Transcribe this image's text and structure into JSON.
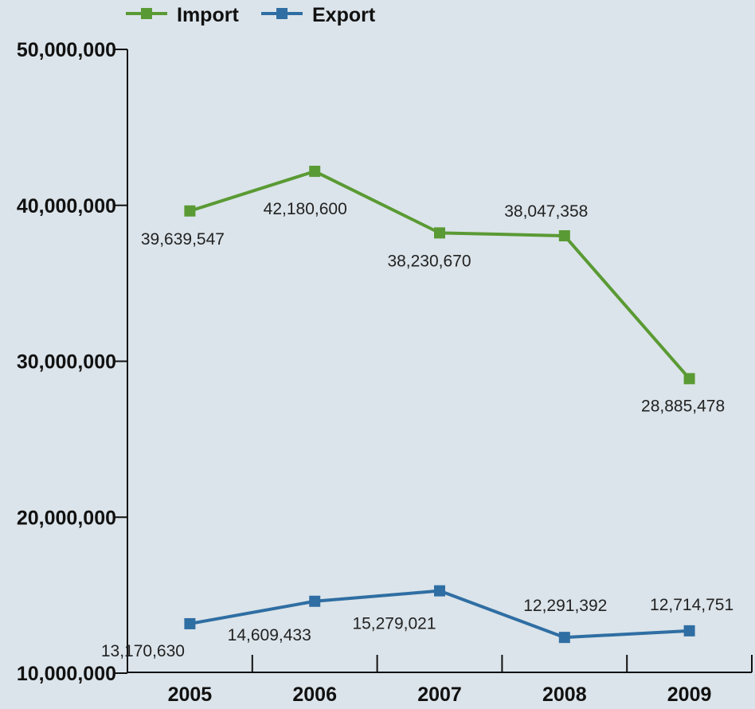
{
  "chart_data": {
    "type": "line",
    "categories": [
      "2005",
      "2006",
      "2007",
      "2008",
      "2009"
    ],
    "series": [
      {
        "name": "Import",
        "color": "#5a9a34",
        "values": [
          39639547,
          42180600,
          38230670,
          38047358,
          28885478
        ],
        "labels": [
          "39,639,547",
          "42,180,600",
          "38,230,670",
          "38,047,358",
          "28,885,478"
        ]
      },
      {
        "name": "Export",
        "color": "#2f6ea3",
        "values": [
          13170630,
          14609433,
          15279021,
          12291392,
          12714751
        ],
        "labels": [
          "13,170,630",
          "14,609,433",
          "15,279,021",
          "12,291,392",
          "12,714,751"
        ]
      }
    ],
    "yticks": [
      10000000,
      20000000,
      30000000,
      40000000,
      50000000
    ],
    "ytick_labels": [
      "10,000,000",
      "20,000,000",
      "30,000,000",
      "40,000,000",
      "50,000,000"
    ],
    "ylim": [
      10000000,
      50000000
    ],
    "grid": false,
    "legend_position": "top-left"
  }
}
